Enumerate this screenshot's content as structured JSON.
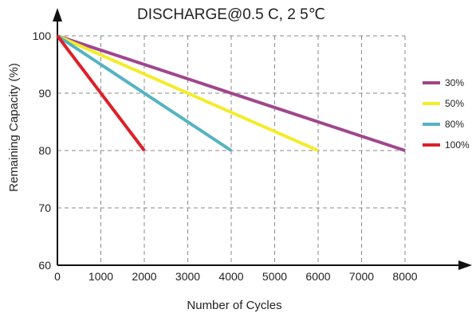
{
  "chart_data": {
    "type": "line",
    "title": "DISCHARGE@0.5 C, 2 5℃",
    "xlabel": "Number of Cycles",
    "ylabel": "Remaining Capacity (%)",
    "xlim": [
      0,
      8000
    ],
    "ylim": [
      60,
      100
    ],
    "xticks": [
      "0",
      "1000",
      "2000",
      "3000",
      "4000",
      "5000",
      "6000",
      "7000",
      "8000"
    ],
    "yticks": [
      "60",
      "70",
      "80",
      "90",
      "100"
    ],
    "grid": true,
    "grid_style": "dashed",
    "legend_position": "right",
    "series": [
      {
        "name": "30%",
        "color": "#a0468e",
        "points": [
          [
            0,
            100
          ],
          [
            8000,
            80
          ]
        ]
      },
      {
        "name": "50%",
        "color": "#f4ec2a",
        "points": [
          [
            0,
            100
          ],
          [
            6000,
            80
          ]
        ]
      },
      {
        "name": "80%",
        "color": "#55b3c2",
        "points": [
          [
            0,
            100
          ],
          [
            4000,
            80
          ]
        ]
      },
      {
        "name": "100%",
        "color": "#dd2028",
        "points": [
          [
            0,
            100
          ],
          [
            2000,
            80
          ]
        ]
      }
    ]
  }
}
